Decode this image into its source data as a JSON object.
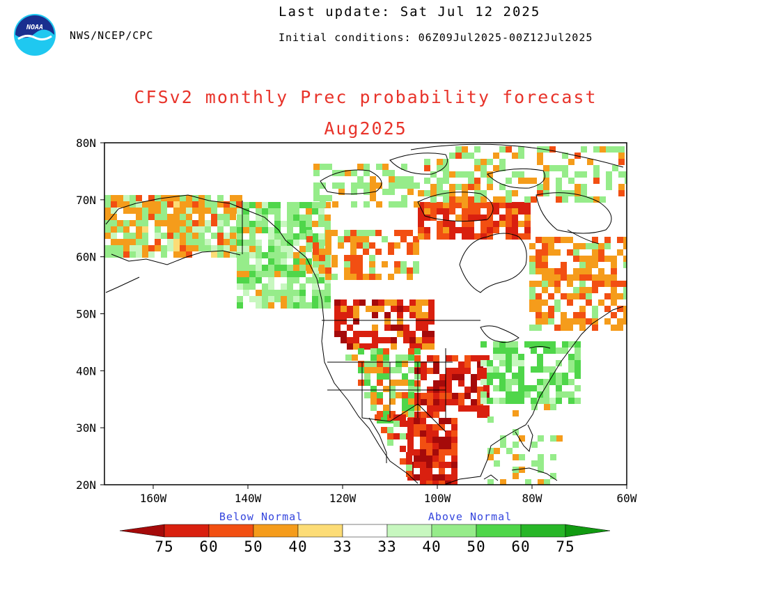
{
  "header": {
    "agency": "NWS/NCEP/CPC",
    "last_update": "Last update: Sat Jul 12 2025",
    "initial_conditions": "Initial conditions: 06Z09Jul2025-00Z12Jul2025"
  },
  "title": "CFSv2 monthly Prec probability forecast",
  "subtitle": "Aug2025",
  "logo": {
    "name": "noaa-logo",
    "text": "NOAA"
  },
  "axes": {
    "y_ticks": [
      "20N",
      "30N",
      "40N",
      "50N",
      "60N",
      "70N",
      "80N"
    ],
    "x_ticks": [
      "160W",
      "140W",
      "120W",
      "100W",
      "80W",
      "60W"
    ]
  },
  "legend": {
    "below_label": "Below Normal",
    "above_label": "Above Normal",
    "below_colors": [
      "#a50a0a",
      "#d9200f",
      "#f24f12",
      "#f59c1b",
      "#fcdc76"
    ],
    "above_colors": [
      "#c7f7bf",
      "#96ec8a",
      "#4fd64a",
      "#28b628",
      "#119a11"
    ],
    "tick_labels": [
      "75",
      "60",
      "50",
      "40",
      "33",
      "33",
      "40",
      "50",
      "60",
      "75"
    ]
  },
  "colors": {
    "title": "#e8332a",
    "legend_text": "#3344dd",
    "coastline": "#000000"
  }
}
